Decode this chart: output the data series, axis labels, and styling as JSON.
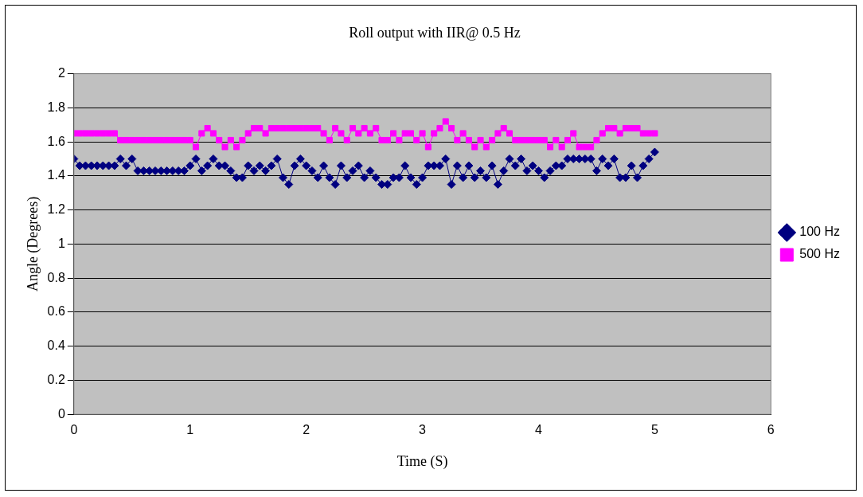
{
  "chart_data": {
    "type": "line",
    "title": "Roll output with IIR@ 0.5 Hz",
    "xlabel": "Time (S)",
    "ylabel": "Angle (Degrees)",
    "x": [
      0,
      0.05,
      0.1,
      0.15,
      0.2,
      0.25,
      0.3,
      0.35,
      0.4,
      0.45,
      0.5,
      0.55,
      0.6,
      0.65,
      0.7,
      0.75,
      0.8,
      0.85,
      0.9,
      0.95,
      1,
      1.05,
      1.1,
      1.15,
      1.2,
      1.25,
      1.3,
      1.35,
      1.4,
      1.45,
      1.5,
      1.55,
      1.6,
      1.65,
      1.7,
      1.75,
      1.8,
      1.85,
      1.9,
      1.95,
      2,
      2.05,
      2.1,
      2.15,
      2.2,
      2.25,
      2.3,
      2.35,
      2.4,
      2.45,
      2.5,
      2.55,
      2.6,
      2.65,
      2.7,
      2.75,
      2.8,
      2.85,
      2.9,
      2.95,
      3,
      3.05,
      3.1,
      3.15,
      3.2,
      3.25,
      3.3,
      3.35,
      3.4,
      3.45,
      3.5,
      3.55,
      3.6,
      3.65,
      3.7,
      3.75,
      3.8,
      3.85,
      3.9,
      3.95,
      4,
      4.05,
      4.1,
      4.15,
      4.2,
      4.25,
      4.3,
      4.35,
      4.4,
      4.45,
      4.5,
      4.55,
      4.6,
      4.65,
      4.7,
      4.75,
      4.8,
      4.85,
      4.9,
      4.95,
      5
    ],
    "series": [
      {
        "name": "100 Hz",
        "color": "#000080",
        "marker": "diamond",
        "values": [
          1.5,
          1.46,
          1.46,
          1.46,
          1.46,
          1.46,
          1.46,
          1.46,
          1.5,
          1.46,
          1.5,
          1.43,
          1.43,
          1.43,
          1.43,
          1.43,
          1.43,
          1.43,
          1.43,
          1.43,
          1.46,
          1.5,
          1.43,
          1.46,
          1.5,
          1.46,
          1.46,
          1.43,
          1.39,
          1.39,
          1.46,
          1.43,
          1.46,
          1.43,
          1.46,
          1.5,
          1.39,
          1.35,
          1.46,
          1.5,
          1.46,
          1.43,
          1.39,
          1.46,
          1.39,
          1.35,
          1.46,
          1.39,
          1.43,
          1.46,
          1.39,
          1.43,
          1.39,
          1.35,
          1.35,
          1.39,
          1.39,
          1.46,
          1.39,
          1.35,
          1.39,
          1.46,
          1.46,
          1.46,
          1.5,
          1.35,
          1.46,
          1.39,
          1.46,
          1.39,
          1.43,
          1.39,
          1.46,
          1.35,
          1.43,
          1.5,
          1.46,
          1.5,
          1.43,
          1.46,
          1.43,
          1.39,
          1.43,
          1.46,
          1.46,
          1.5,
          1.5,
          1.5,
          1.5,
          1.5,
          1.43,
          1.5,
          1.46,
          1.5,
          1.39,
          1.39,
          1.46,
          1.39,
          1.46,
          1.5,
          1.54
        ]
      },
      {
        "name": "500 Hz",
        "color": "#ff00ff",
        "marker": "square",
        "values": [
          1.65,
          1.65,
          1.65,
          1.65,
          1.65,
          1.65,
          1.65,
          1.65,
          1.61,
          1.61,
          1.61,
          1.61,
          1.61,
          1.61,
          1.61,
          1.61,
          1.61,
          1.61,
          1.61,
          1.61,
          1.61,
          1.57,
          1.65,
          1.68,
          1.65,
          1.61,
          1.57,
          1.61,
          1.57,
          1.61,
          1.65,
          1.68,
          1.68,
          1.65,
          1.68,
          1.68,
          1.68,
          1.68,
          1.68,
          1.68,
          1.68,
          1.68,
          1.68,
          1.65,
          1.61,
          1.68,
          1.65,
          1.61,
          1.68,
          1.65,
          1.68,
          1.65,
          1.68,
          1.61,
          1.61,
          1.65,
          1.61,
          1.65,
          1.65,
          1.61,
          1.65,
          1.57,
          1.65,
          1.68,
          1.72,
          1.68,
          1.61,
          1.65,
          1.61,
          1.57,
          1.61,
          1.57,
          1.61,
          1.65,
          1.68,
          1.65,
          1.61,
          1.61,
          1.61,
          1.61,
          1.61,
          1.61,
          1.57,
          1.61,
          1.57,
          1.61,
          1.65,
          1.57,
          1.57,
          1.57,
          1.61,
          1.65,
          1.68,
          1.68,
          1.65,
          1.68,
          1.68,
          1.68,
          1.65,
          1.65,
          1.65
        ]
      }
    ],
    "xlim": [
      0,
      6
    ],
    "xticks": [
      0,
      1,
      2,
      3,
      4,
      5,
      6
    ],
    "ylim": [
      0,
      2
    ],
    "yticks": [
      0,
      0.2,
      0.4,
      0.6,
      0.8,
      1,
      1.2,
      1.4,
      1.6,
      1.8,
      2
    ],
    "grid": "y",
    "legend": "right",
    "line_style": "solid"
  }
}
